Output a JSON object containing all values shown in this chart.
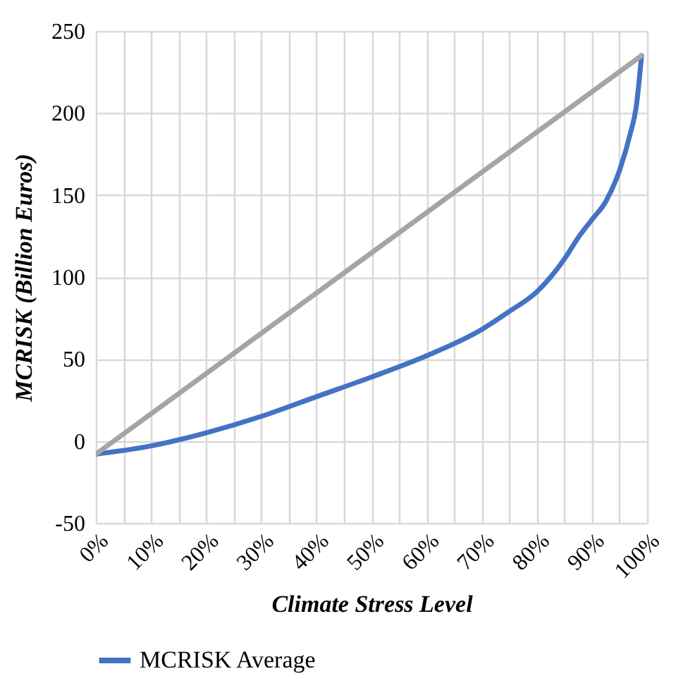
{
  "chart_data": {
    "type": "line",
    "xlabel": "Climate Stress Level",
    "ylabel": "MCRISK (Billion Euros)",
    "series": [
      {
        "name": "MCRISK Average",
        "color": "#4472c4",
        "x": [
          0,
          10,
          20,
          30,
          40,
          50,
          60,
          70,
          75,
          80,
          85,
          87.5,
          90,
          92.5,
          95,
          97,
          98,
          99
        ],
        "values": [
          -8,
          -3,
          5,
          15,
          27,
          39,
          52,
          68,
          79,
          91,
          111,
          124,
          135,
          146,
          165,
          188,
          203,
          235
        ]
      },
      {
        "color": "#a5a5a5",
        "x": [
          0,
          99
        ],
        "values": [
          -8,
          235
        ]
      }
    ],
    "xlim": [
      0,
      100
    ],
    "xticks": [
      {
        "value": 0,
        "label": "0%"
      },
      {
        "value": 5,
        "label": null
      },
      {
        "value": 10,
        "label": "10%"
      },
      {
        "value": 15,
        "label": null
      },
      {
        "value": 20,
        "label": "20%"
      },
      {
        "value": 25,
        "label": null
      },
      {
        "value": 30,
        "label": "30%"
      },
      {
        "value": 35,
        "label": null
      },
      {
        "value": 40,
        "label": "40%"
      },
      {
        "value": 45,
        "label": null
      },
      {
        "value": 50,
        "label": "50%"
      },
      {
        "value": 55,
        "label": null
      },
      {
        "value": 60,
        "label": "60%"
      },
      {
        "value": 65,
        "label": null
      },
      {
        "value": 70,
        "label": "70%"
      },
      {
        "value": 75,
        "label": null
      },
      {
        "value": 80,
        "label": "80%"
      },
      {
        "value": 85,
        "label": null
      },
      {
        "value": 90,
        "label": "90%"
      },
      {
        "value": 95,
        "label": null
      },
      {
        "value": 100,
        "label": "100%"
      }
    ],
    "ylim": [
      -50,
      250
    ],
    "yticks": [
      -50,
      0,
      50,
      100,
      150,
      200,
      250
    ],
    "grid": true,
    "legend": "bottom",
    "marker": "none",
    "line_style": "solid"
  }
}
